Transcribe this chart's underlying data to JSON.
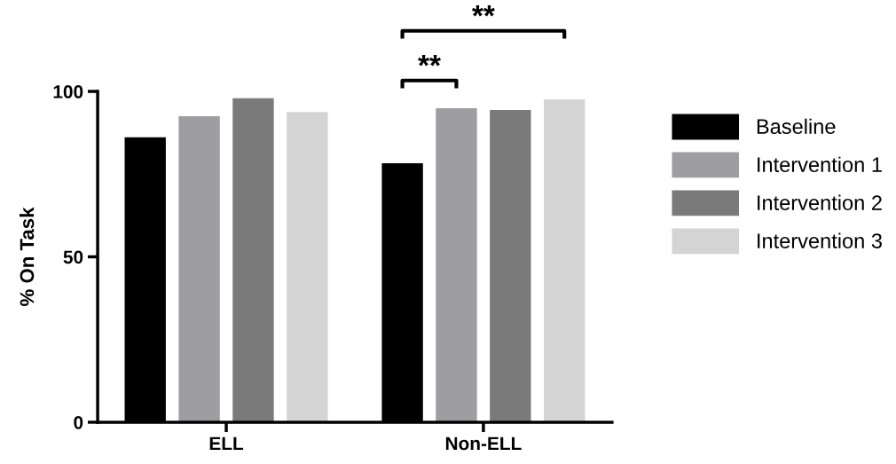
{
  "chart_data": {
    "type": "bar",
    "ylabel": "% On Task",
    "categories": [
      "ELL",
      "Non-ELL"
    ],
    "series": [
      {
        "name": "Baseline",
        "color": "#000000",
        "values": [
          86.1,
          78.3
        ]
      },
      {
        "name": "Intervention 1",
        "color": "#9d9da2",
        "values": [
          92.5,
          94.9
        ]
      },
      {
        "name": "Intervention 2",
        "color": "#7a7a7a",
        "values": [
          97.9,
          94.4
        ]
      },
      {
        "name": "Intervention 3",
        "color": "#d4d4d4",
        "values": [
          93.8,
          97.6
        ]
      }
    ],
    "ylim": [
      0,
      100
    ],
    "yticks": [
      0,
      50,
      100
    ],
    "grid": false,
    "legend": "right",
    "annotations": [
      "**",
      "**"
    ]
  }
}
